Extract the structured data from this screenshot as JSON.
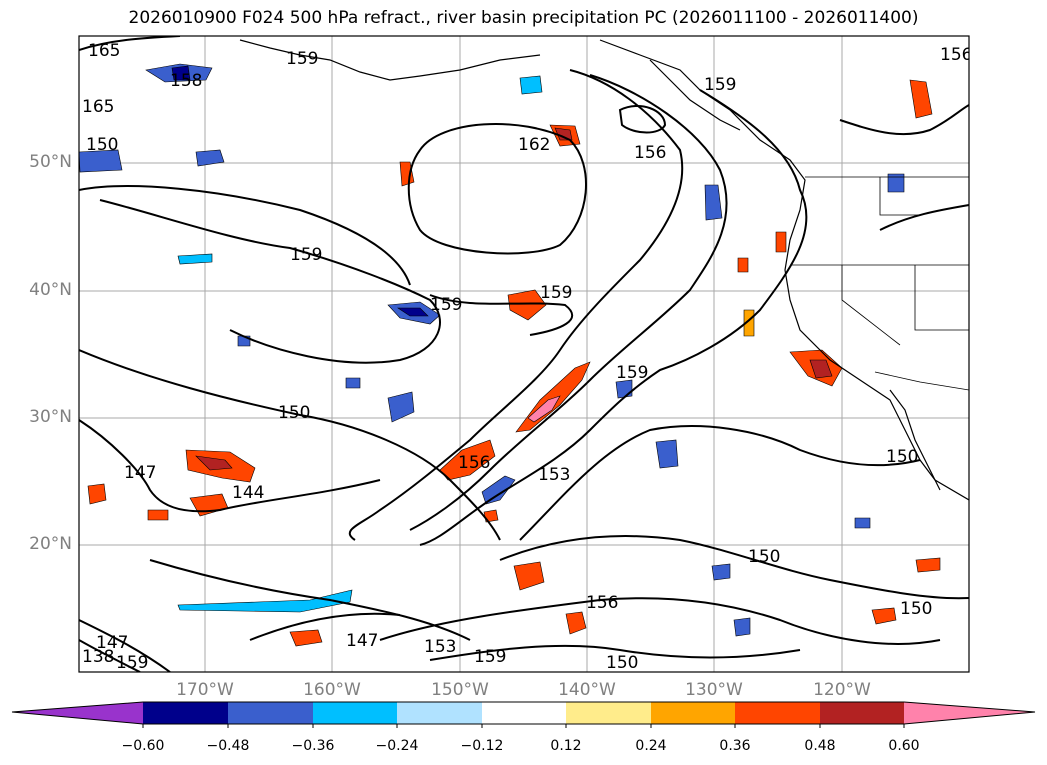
{
  "title": "2026010900 F024 500 hPa refract., river basin precipitation PC (2026011100 - 2026011400)",
  "map": {
    "lat_labels": [
      "50°N",
      "40°N",
      "30°N",
      "20°N"
    ],
    "lon_labels": [
      "170°W",
      "160°W",
      "150°W",
      "140°W",
      "130°W",
      "120°W"
    ],
    "contour_labels": [
      "165",
      "158",
      "165",
      "159",
      "159",
      "162",
      "156",
      "159",
      "159",
      "159",
      "150",
      "147",
      "144",
      "150",
      "156",
      "153",
      "159",
      "150",
      "150",
      "156",
      "147",
      "153",
      "159",
      "150",
      "156",
      "150",
      "147",
      "138",
      "159"
    ],
    "colors": {
      "neg_060": "#9933cc",
      "neg_048": "#00008b",
      "neg_036": "#3a5fcd",
      "neg_024": "#00bfff",
      "neg_012": "#b0e2ff",
      "zero": "#ffffff",
      "pos_012": "#ffec8b",
      "pos_024": "#ffa500",
      "pos_036": "#ff4500",
      "pos_048": "#b22222",
      "pos_060": "#ff82ab"
    }
  },
  "colorbar": {
    "ticks": [
      "−0.60",
      "−0.48",
      "−0.36",
      "−0.24",
      "−0.12",
      "0.12",
      "0.24",
      "0.36",
      "0.48",
      "0.60"
    ]
  }
}
